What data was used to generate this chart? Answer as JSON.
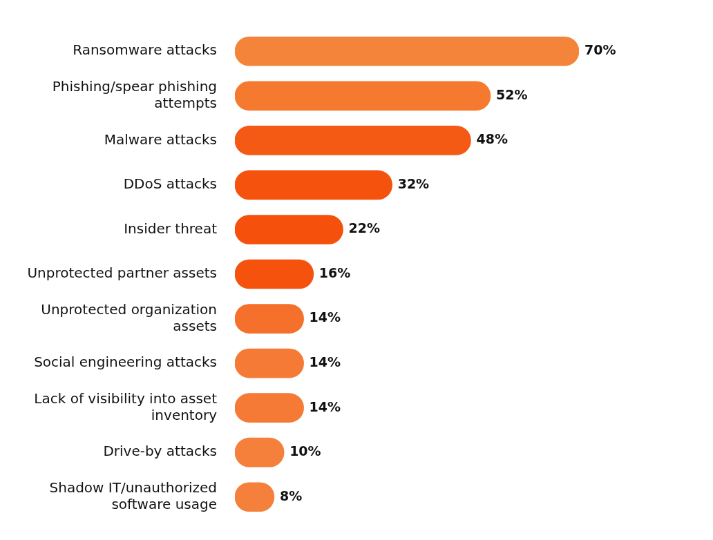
{
  "chart_data": {
    "type": "bar",
    "orientation": "horizontal",
    "categories": [
      "Ransomware attacks",
      "Phishing/spear phishing attempts",
      "Malware attacks",
      "DDoS attacks",
      "Insider threat",
      "Unprotected partner assets",
      "Unprotected organization assets",
      "Social engineering attacks",
      "Lack of visibility into asset inventory",
      "Drive-by attacks",
      "Shadow IT/unauthorized software usage"
    ],
    "values": [
      70,
      52,
      48,
      32,
      22,
      16,
      14,
      14,
      14,
      10,
      8
    ],
    "colors": [
      "#f3843a",
      "#f57a30",
      "#f55a14",
      "#f5520e",
      "#f5500c",
      "#f5520e",
      "#f5702a",
      "#f57a35",
      "#f57a35",
      "#f5803c",
      "#f5803c"
    ],
    "tick_labels": "y",
    "data_labels": true,
    "value_labels": [
      "70%",
      "52%",
      "48%",
      "32%",
      "22%",
      "16%",
      "14%",
      "14%",
      "14%",
      "10%",
      "8%"
    ]
  }
}
